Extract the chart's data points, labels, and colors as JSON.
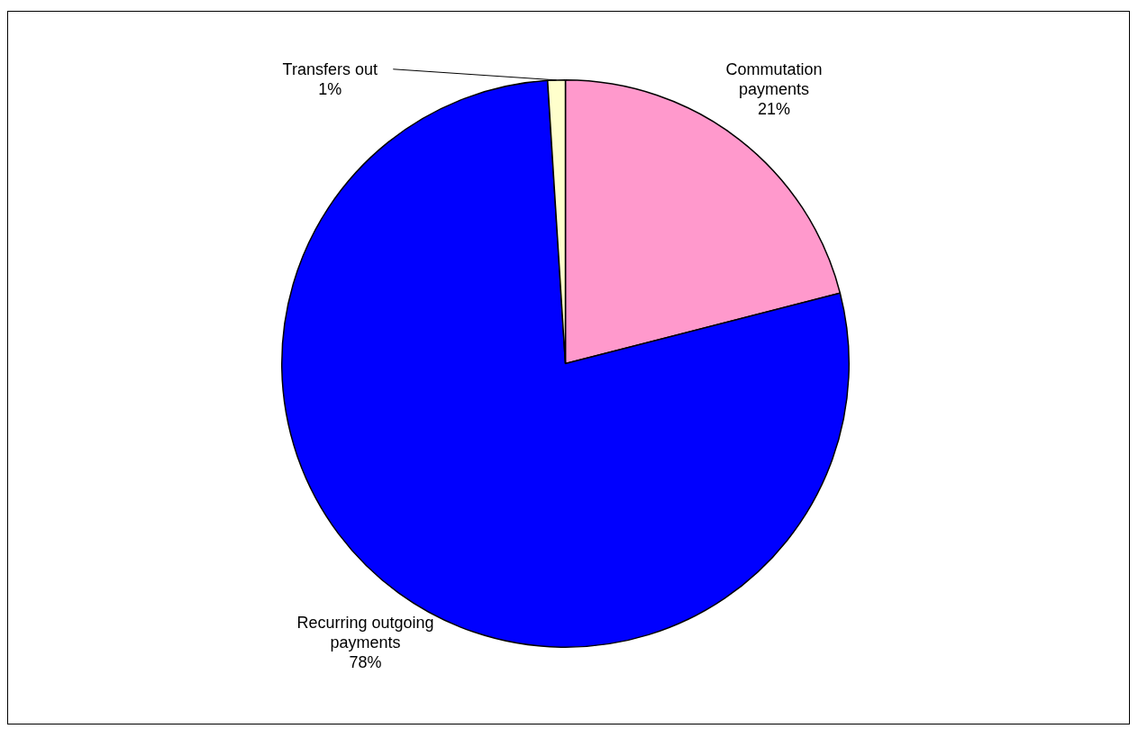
{
  "chart_data": {
    "type": "pie",
    "categories": [
      "Commutation payments",
      "Recurring outgoing payments",
      "Transfers out"
    ],
    "values": [
      21,
      78,
      1
    ],
    "colors": [
      "#ff99cc",
      "#0000ff",
      "#ffffcc"
    ],
    "value_labels": [
      "21%",
      "78%",
      "1%"
    ],
    "legend": false
  }
}
